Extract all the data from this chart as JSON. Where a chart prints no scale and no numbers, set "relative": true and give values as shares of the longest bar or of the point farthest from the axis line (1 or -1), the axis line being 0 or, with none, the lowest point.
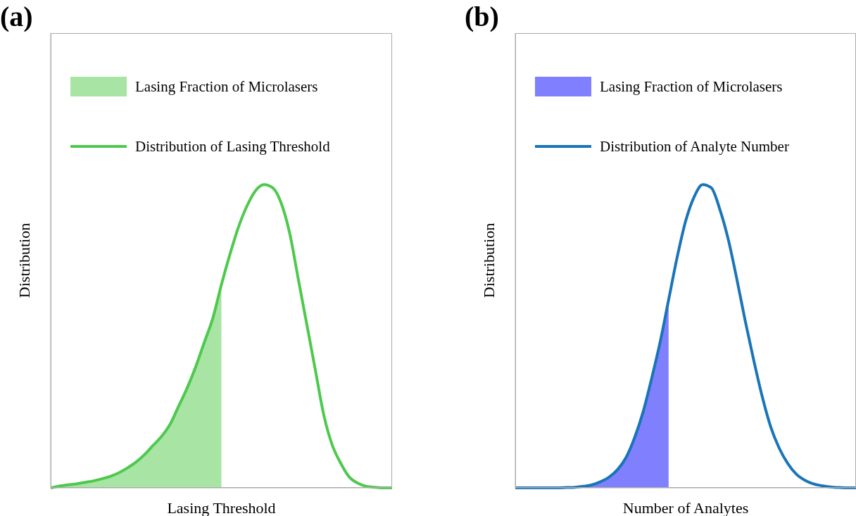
{
  "chart_data": [
    {
      "type": "line",
      "title": "(a)",
      "xlabel": "Lasing Threshold",
      "ylabel": "Distribution",
      "relative": true,
      "legend": "top left",
      "categories": [
        null,
        null,
        null,
        null,
        null,
        null,
        null,
        null,
        null,
        null,
        null,
        null,
        null,
        null,
        null,
        null,
        null,
        null,
        null,
        null,
        null,
        null,
        null,
        null,
        null,
        null,
        null,
        null,
        null,
        null,
        null,
        null,
        null,
        null,
        null,
        null,
        null,
        null,
        null,
        null,
        null
      ],
      "series": [
        {
          "name": "Lasing Fraction of Microlasers",
          "type": "area",
          "color": "#a8e4a4",
          "values": [
            0,
            0.006,
            0.01,
            0.013,
            0.018,
            0.023,
            0.03,
            0.038,
            0.05,
            0.066,
            0.085,
            0.11,
            0.14,
            0.17,
            0.21,
            0.27,
            0.33,
            0.4,
            0.48,
            0.56,
            0.67,
            null,
            null,
            null,
            null,
            null,
            null,
            null,
            null,
            null,
            null,
            null,
            null,
            null,
            null,
            null,
            null,
            null,
            null,
            null,
            null
          ]
        },
        {
          "name": "Distribution of Lasing Threshold",
          "type": "line",
          "color": "#4ec94e",
          "values": [
            0,
            0.006,
            0.01,
            0.013,
            0.018,
            0.023,
            0.03,
            0.038,
            0.05,
            0.066,
            0.085,
            0.11,
            0.14,
            0.17,
            0.21,
            0.27,
            0.33,
            0.4,
            0.48,
            0.56,
            0.67,
            0.77,
            0.86,
            0.93,
            0.98,
            1,
            0.99,
            0.94,
            0.84,
            0.69,
            0.54,
            0.39,
            0.24,
            0.14,
            0.08,
            0.035,
            0.015,
            0.005,
            0.002,
            0,
            0
          ]
        }
      ]
    },
    {
      "type": "line",
      "title": "(b)",
      "xlabel": "Number of Analytes",
      "ylabel": "Distribution",
      "relative": true,
      "legend": "top left",
      "categories": [
        null,
        null,
        null,
        null,
        null,
        null,
        null,
        null,
        null,
        null,
        null,
        null,
        null,
        null,
        null,
        null,
        null,
        null,
        null,
        null,
        null,
        null,
        null,
        null,
        null,
        null,
        null,
        null,
        null,
        null,
        null,
        null,
        null,
        null,
        null,
        null,
        null,
        null,
        null,
        null,
        null
      ],
      "series": [
        {
          "name": "Lasing Fraction of Microlasers",
          "type": "area",
          "color": "#8080ff",
          "values": [
            0,
            0,
            0,
            0,
            0,
            0,
            0.001,
            0.002,
            0.005,
            0.01,
            0.02,
            0.035,
            0.06,
            0.1,
            0.165,
            0.25,
            0.36,
            0.48,
            0.62,
            null,
            null,
            null,
            null,
            null,
            null,
            null,
            null,
            null,
            null,
            null,
            null,
            null,
            null,
            null,
            null,
            null,
            null,
            null,
            null,
            null,
            null
          ]
        },
        {
          "name": "Distribution of Analyte Number",
          "type": "line",
          "color": "#1a75b8",
          "values": [
            0,
            0,
            0,
            0,
            0,
            0,
            0.001,
            0.002,
            0.005,
            0.01,
            0.02,
            0.035,
            0.06,
            0.1,
            0.165,
            0.25,
            0.36,
            0.48,
            0.62,
            0.76,
            0.88,
            0.96,
            1,
            0.99,
            0.92,
            0.82,
            0.69,
            0.55,
            0.42,
            0.3,
            0.2,
            0.13,
            0.08,
            0.045,
            0.025,
            0.013,
            0.007,
            0.003,
            0.001,
            0,
            0
          ]
        }
      ]
    }
  ]
}
